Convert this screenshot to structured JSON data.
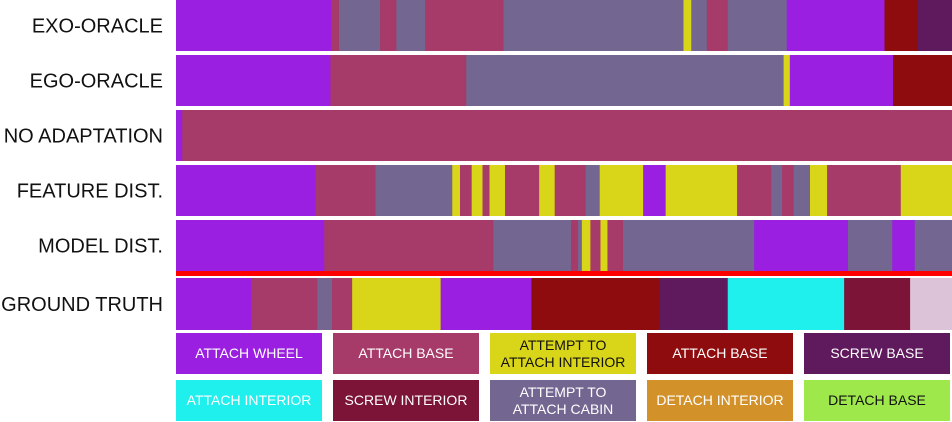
{
  "chart_data": {
    "type": "segmentation-timeline",
    "rows": [
      {
        "label": "EXO-ORACLE",
        "segments": [
          {
            "start": 0,
            "end": 20,
            "action": "attach_wheel"
          },
          {
            "start": 20,
            "end": 21,
            "action": "attach_base_pink"
          },
          {
            "start": 21,
            "end": 26.3,
            "action": "attempt_attach_cabin"
          },
          {
            "start": 26.3,
            "end": 28.4,
            "action": "attach_base_pink"
          },
          {
            "start": 28.4,
            "end": 32.1,
            "action": "attempt_attach_cabin"
          },
          {
            "start": 32.1,
            "end": 42.2,
            "action": "attach_base_pink"
          },
          {
            "start": 42.2,
            "end": 65.4,
            "action": "attempt_attach_cabin"
          },
          {
            "start": 65.4,
            "end": 66.4,
            "action": "attempt_attach_interior"
          },
          {
            "start": 66.4,
            "end": 68.4,
            "action": "attempt_attach_cabin"
          },
          {
            "start": 68.4,
            "end": 71.1,
            "action": "attach_base_pink"
          },
          {
            "start": 71.1,
            "end": 78.7,
            "action": "attempt_attach_cabin"
          },
          {
            "start": 78.7,
            "end": 91.3,
            "action": "attach_wheel"
          },
          {
            "start": 91.3,
            "end": 95.6,
            "action": "attach_base_red"
          },
          {
            "start": 95.6,
            "end": 100,
            "action": "screw_base"
          }
        ]
      },
      {
        "label": "EGO-ORACLE",
        "segments": [
          {
            "start": 0,
            "end": 19.9,
            "action": "attach_wheel"
          },
          {
            "start": 19.9,
            "end": 37.4,
            "action": "attach_base_pink"
          },
          {
            "start": 37.4,
            "end": 78.3,
            "action": "attempt_attach_cabin"
          },
          {
            "start": 78.3,
            "end": 79.1,
            "action": "attempt_attach_interior"
          },
          {
            "start": 79.1,
            "end": 92.4,
            "action": "attach_wheel"
          },
          {
            "start": 92.4,
            "end": 100,
            "action": "attach_base_red"
          }
        ]
      },
      {
        "label": "NO ADAPTATION",
        "segments": [
          {
            "start": 0,
            "end": 0.8,
            "action": "attach_wheel"
          },
          {
            "start": 0.8,
            "end": 100,
            "action": "attach_base_pink"
          }
        ]
      },
      {
        "label": "FEATURE DIST.",
        "segments": [
          {
            "start": 0,
            "end": 18,
            "action": "attach_wheel"
          },
          {
            "start": 18,
            "end": 25.7,
            "action": "attach_base_pink"
          },
          {
            "start": 25.7,
            "end": 35.6,
            "action": "attempt_attach_cabin"
          },
          {
            "start": 35.6,
            "end": 36.6,
            "action": "attempt_attach_interior"
          },
          {
            "start": 36.6,
            "end": 38.1,
            "action": "attach_base_pink"
          },
          {
            "start": 38.1,
            "end": 39.5,
            "action": "attempt_attach_interior"
          },
          {
            "start": 39.5,
            "end": 40.4,
            "action": "attach_base_pink"
          },
          {
            "start": 40.4,
            "end": 42.4,
            "action": "attempt_attach_interior"
          },
          {
            "start": 42.4,
            "end": 46.8,
            "action": "attach_base_pink"
          },
          {
            "start": 46.8,
            "end": 48.8,
            "action": "attempt_attach_interior"
          },
          {
            "start": 48.8,
            "end": 52.8,
            "action": "attach_base_pink"
          },
          {
            "start": 52.8,
            "end": 54.6,
            "action": "attempt_attach_cabin"
          },
          {
            "start": 54.6,
            "end": 60.2,
            "action": "attempt_attach_interior"
          },
          {
            "start": 60.2,
            "end": 63.1,
            "action": "attach_wheel"
          },
          {
            "start": 63.1,
            "end": 72.3,
            "action": "attempt_attach_interior"
          },
          {
            "start": 72.3,
            "end": 76.7,
            "action": "attach_base_pink"
          },
          {
            "start": 76.7,
            "end": 78.1,
            "action": "attempt_attach_cabin"
          },
          {
            "start": 78.1,
            "end": 79.6,
            "action": "attach_base_pink"
          },
          {
            "start": 79.6,
            "end": 81.7,
            "action": "attempt_attach_cabin"
          },
          {
            "start": 81.7,
            "end": 83.9,
            "action": "attempt_attach_interior"
          },
          {
            "start": 83.9,
            "end": 93.4,
            "action": "attach_base_pink"
          },
          {
            "start": 93.4,
            "end": 100,
            "action": "attempt_attach_interior"
          }
        ]
      },
      {
        "label": "MODEL DIST.",
        "segments": [
          {
            "start": 0,
            "end": 19.1,
            "action": "attach_wheel"
          },
          {
            "start": 19.1,
            "end": 40.9,
            "action": "attach_base_pink"
          },
          {
            "start": 40.9,
            "end": 50.9,
            "action": "attempt_attach_cabin"
          },
          {
            "start": 50.9,
            "end": 51.8,
            "action": "attach_base_pink"
          },
          {
            "start": 51.8,
            "end": 52.3,
            "action": "attempt_attach_cabin"
          },
          {
            "start": 52.3,
            "end": 53.4,
            "action": "attempt_attach_interior"
          },
          {
            "start": 53.4,
            "end": 54.7,
            "action": "attach_base_pink"
          },
          {
            "start": 54.7,
            "end": 55.6,
            "action": "attempt_attach_interior"
          },
          {
            "start": 55.6,
            "end": 57.6,
            "action": "attach_base_pink"
          },
          {
            "start": 57.6,
            "end": 74.5,
            "action": "attempt_attach_cabin"
          },
          {
            "start": 74.5,
            "end": 86.6,
            "action": "attach_wheel"
          },
          {
            "start": 86.6,
            "end": 92.3,
            "action": "attempt_attach_cabin"
          },
          {
            "start": 92.3,
            "end": 95.2,
            "action": "attach_wheel"
          },
          {
            "start": 95.2,
            "end": 100,
            "action": "attempt_attach_cabin"
          }
        ]
      },
      {
        "label": "GROUND TRUTH",
        "segments": [
          {
            "start": 0,
            "end": 9.7,
            "action": "attach_wheel"
          },
          {
            "start": 9.7,
            "end": 18.2,
            "action": "attach_base_pink"
          },
          {
            "start": 18.2,
            "end": 20.1,
            "action": "attempt_attach_cabin"
          },
          {
            "start": 20.1,
            "end": 22.7,
            "action": "attach_base_pink"
          },
          {
            "start": 22.7,
            "end": 34.1,
            "action": "attempt_attach_interior"
          },
          {
            "start": 34.1,
            "end": 45.8,
            "action": "attach_wheel"
          },
          {
            "start": 45.8,
            "end": 62.3,
            "action": "attach_base_red"
          },
          {
            "start": 62.3,
            "end": 71.1,
            "action": "screw_base"
          },
          {
            "start": 71.1,
            "end": 86.1,
            "action": "attach_interior"
          },
          {
            "start": 86.1,
            "end": 94.6,
            "action": "screw_interior"
          },
          {
            "start": 94.6,
            "end": 100,
            "action": "unlisted_lavender"
          }
        ]
      }
    ],
    "legend": [
      {
        "key": "attach_wheel",
        "label": "ATTACH WHEEL",
        "color": "#9a1fe0"
      },
      {
        "key": "attach_base_pink",
        "label": "ATTACH BASE",
        "color": "#a63a69"
      },
      {
        "key": "attempt_attach_interior",
        "label": "ATTEMPT TO ATTACH INTERIOR",
        "color": "#d9d518"
      },
      {
        "key": "attach_base_red",
        "label": "ATTACH BASE",
        "color": "#8f0c0e"
      },
      {
        "key": "screw_base",
        "label": "SCREW BASE",
        "color": "#5e1a5c"
      },
      {
        "key": "attach_interior",
        "label": "ATTACH INTERIOR",
        "color": "#1ff0ee"
      },
      {
        "key": "screw_interior",
        "label": "SCREW INTERIOR",
        "color": "#7c1438"
      },
      {
        "key": "attempt_attach_cabin",
        "label": "ATTEMPT TO ATTACH CABIN",
        "color": "#736690"
      },
      {
        "key": "detach_interior",
        "label": "DETACH INTERIOR",
        "color": "#d3912a"
      },
      {
        "key": "detach_base",
        "label": "DETACH BASE",
        "color": "#9ee84c"
      }
    ],
    "extra_colors": {
      "unlisted_lavender": "#dcc3d8"
    },
    "separator_color": "#ff0000"
  }
}
